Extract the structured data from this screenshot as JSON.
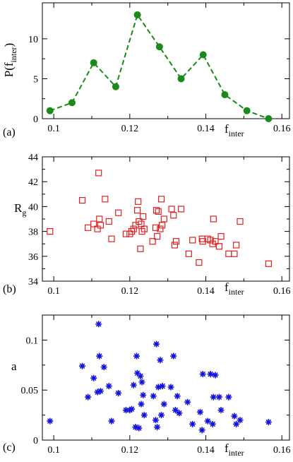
{
  "chart_data": [
    {
      "type": "line",
      "panel_label": "(a)",
      "ylabel": {
        "main": "P(f",
        "sub": "inter",
        "tail": ")"
      },
      "xlabel": {
        "main": "f",
        "sub": "inter"
      },
      "xlim": [
        0.097,
        0.162
      ],
      "ylim": [
        0,
        14.5
      ],
      "xticks": [
        0.1,
        0.12,
        0.14,
        0.16
      ],
      "xtick_labels": [
        "0.1",
        "0.12",
        "0.14",
        "0.16"
      ],
      "yticks": [
        0,
        5,
        10
      ],
      "ytick_labels": [
        "0",
        "5",
        "10"
      ],
      "color": "#1a8a1a",
      "line_style": "dashed",
      "marker": "circle",
      "x": [
        0.099,
        0.1048,
        0.1105,
        0.1163,
        0.122,
        0.1278,
        0.1335,
        0.1393,
        0.145,
        0.1508,
        0.1565
      ],
      "y": [
        1,
        2,
        7,
        4,
        13,
        9,
        5,
        8,
        3,
        1,
        0
      ]
    },
    {
      "type": "scatter",
      "panel_label": "(b)",
      "ylabel": {
        "main": "R",
        "sub": "g"
      },
      "xlabel": {
        "main": "f",
        "sub": "inter"
      },
      "xlim": [
        0.097,
        0.162
      ],
      "ylim": [
        34,
        44
      ],
      "xticks": [
        0.1,
        0.12,
        0.14,
        0.16
      ],
      "xtick_labels": [
        "0.1",
        "0.12",
        "0.14",
        "0.16"
      ],
      "yticks": [
        34,
        36,
        38,
        40,
        42,
        44
      ],
      "ytick_labels": [
        "34",
        "36",
        "38",
        "40",
        "42",
        "44"
      ],
      "color": "#e02020",
      "marker": "open-square",
      "x": [
        0.099,
        0.1075,
        0.109,
        0.1105,
        0.1115,
        0.1118,
        0.112,
        0.1123,
        0.1135,
        0.1145,
        0.1152,
        0.117,
        0.119,
        0.12,
        0.1205,
        0.121,
        0.1215,
        0.122,
        0.1222,
        0.1224,
        0.1228,
        0.123,
        0.1232,
        0.1235,
        0.1238,
        0.126,
        0.1268,
        0.127,
        0.1272,
        0.1275,
        0.128,
        0.1283,
        0.1285,
        0.129,
        0.131,
        0.1315,
        0.1318,
        0.1322,
        0.1335,
        0.1355,
        0.1365,
        0.1382,
        0.139,
        0.1392,
        0.1405,
        0.1412,
        0.1418,
        0.142,
        0.1425,
        0.1435,
        0.144,
        0.146,
        0.1475,
        0.148,
        0.149,
        0.1565
      ],
      "y": [
        38.0,
        40.5,
        38.3,
        38.6,
        38.2,
        42.7,
        39.0,
        38.5,
        40.6,
        38.8,
        37.4,
        39.5,
        37.8,
        37.8,
        38.0,
        38.2,
        38.5,
        39.7,
        40.4,
        38.8,
        36.6,
        38.6,
        38.0,
        39.2,
        38.2,
        37.2,
        38.3,
        39.7,
        37.6,
        39.6,
        38.2,
        40.6,
        38.5,
        39.0,
        39.8,
        39.3,
        36.9,
        37.2,
        39.8,
        36.2,
        37.3,
        35.5,
        37.4,
        37.2,
        37.4,
        37.3,
        37.0,
        39.0,
        37.2,
        36.8,
        37.6,
        36.2,
        36.2,
        36.9,
        38.8,
        35.4
      ]
    },
    {
      "type": "scatter",
      "panel_label": "(c)",
      "ylabel": {
        "main": "a",
        "sub": ""
      },
      "xlabel": {
        "main": "f",
        "sub": "inter"
      },
      "xlim": [
        0.097,
        0.162
      ],
      "ylim": [
        0,
        0.125
      ],
      "xticks": [
        0.1,
        0.12,
        0.14,
        0.16
      ],
      "xtick_labels": [
        "0.1",
        "0.12",
        "0.14",
        "0.16"
      ],
      "yticks": [
        0,
        0.05,
        0.1
      ],
      "ytick_labels": [
        "0",
        "0.05",
        "0.1"
      ],
      "color": "#1010e0",
      "marker": "asterisk",
      "x": [
        0.099,
        0.1075,
        0.109,
        0.1105,
        0.1115,
        0.1118,
        0.112,
        0.1123,
        0.1132,
        0.1145,
        0.1152,
        0.117,
        0.119,
        0.12,
        0.1205,
        0.121,
        0.1215,
        0.1218,
        0.122,
        0.1224,
        0.1228,
        0.123,
        0.1232,
        0.1235,
        0.1238,
        0.1262,
        0.1268,
        0.127,
        0.1272,
        0.1275,
        0.128,
        0.1283,
        0.1286,
        0.129,
        0.1308,
        0.1315,
        0.132,
        0.1325,
        0.133,
        0.1352,
        0.1365,
        0.1385,
        0.139,
        0.1392,
        0.1405,
        0.1412,
        0.1418,
        0.142,
        0.1425,
        0.1435,
        0.144,
        0.146,
        0.1475,
        0.148,
        0.149,
        0.1565
      ],
      "y": [
        0.019,
        0.074,
        0.043,
        0.062,
        0.048,
        0.116,
        0.084,
        0.049,
        0.073,
        0.054,
        0.019,
        0.047,
        0.03,
        0.03,
        0.031,
        0.055,
        0.013,
        0.084,
        0.067,
        0.012,
        0.064,
        0.036,
        0.058,
        0.045,
        0.025,
        0.044,
        0.02,
        0.096,
        0.013,
        0.053,
        0.08,
        0.025,
        0.054,
        0.036,
        0.053,
        0.084,
        0.03,
        0.044,
        0.027,
        0.038,
        0.016,
        0.028,
        0.01,
        0.066,
        0.019,
        0.066,
        0.016,
        0.043,
        0.065,
        0.043,
        0.03,
        0.043,
        0.024,
        0.016,
        0.02,
        0.018
      ]
    }
  ]
}
